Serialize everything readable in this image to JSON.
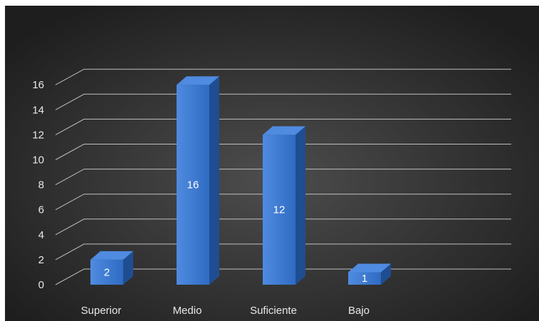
{
  "chart_data": {
    "type": "bar",
    "categories": [
      "Superior",
      "Medio",
      "Suficiente",
      "Bajo"
    ],
    "values": [
      2,
      16,
      12,
      1
    ],
    "data_labels": [
      "2",
      "16",
      "12",
      "1"
    ],
    "ylim": [
      0,
      16
    ],
    "yticks": [
      "0",
      "2",
      "4",
      "6",
      "8",
      "10",
      "12",
      "14",
      "16"
    ],
    "grid": true,
    "legend": "none",
    "style": "3d-column"
  },
  "colors": {
    "background_center": "#4d4d4d",
    "background_edge": "#1e1e1e",
    "bar_front": "#2f6bc2",
    "bar_top": "#4f8be0",
    "bar_side": "#1f4d92",
    "gridline": "#bfbfbf",
    "text": "#e8e8e8"
  }
}
